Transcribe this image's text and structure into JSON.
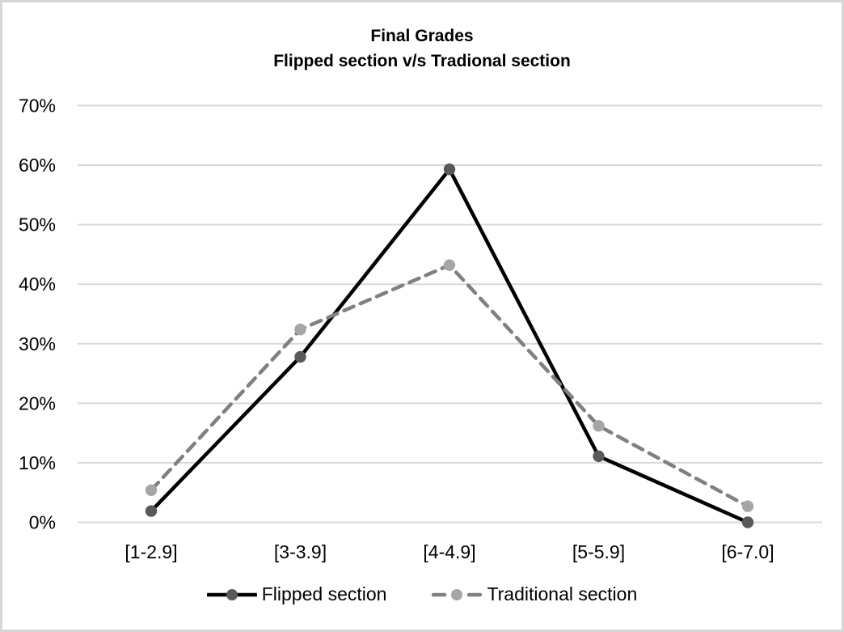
{
  "frame": {
    "border_color": "#d6d6d6",
    "background": "#ffffff"
  },
  "chart_data": {
    "type": "line",
    "title": "Final Grades",
    "subtitle": "Flipped section v/s Tradional section",
    "categories": [
      "[1-2.9]",
      "[3-3.9]",
      "[4-4.9]",
      "[5-5.9]",
      "[6-7.0]"
    ],
    "series": [
      {
        "name": "Flipped section",
        "values": [
          1.9,
          27.8,
          59.3,
          11.1,
          0.0
        ],
        "line_color": "#000000",
        "marker_color": "#595959",
        "dash": "solid"
      },
      {
        "name": "Traditional section",
        "values": [
          5.4,
          32.4,
          43.2,
          16.2,
          2.7
        ],
        "line_color": "#808080",
        "marker_color": "#a6a6a6",
        "dash": "dashed"
      }
    ],
    "ylim": [
      0,
      70
    ],
    "ytick_step": 10,
    "ytick_labels": [
      "0%",
      "10%",
      "20%",
      "30%",
      "40%",
      "50%",
      "60%",
      "70%"
    ],
    "grid": true,
    "gridline_color": "#d9d9d9",
    "text_color": "#000000",
    "legend_position": "bottom"
  }
}
